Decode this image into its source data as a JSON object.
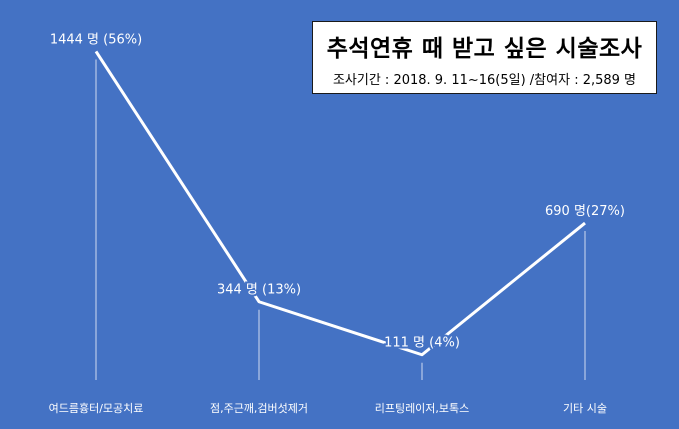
{
  "title_box": {
    "title": "추석연휴 때 받고 싶은 시술조사",
    "subtitle": "조사기간 : 2018. 9. 11~16(5일) /참여자 : 2,589 명"
  },
  "chart_data": {
    "type": "line",
    "title": "추석연휴 때 받고 싶은 시술조사",
    "subtitle": "조사기간 : 2018. 9. 11~16(5일) /참여자 : 2,589 명",
    "categories": [
      "여드름흉터/모공치료",
      "점,주근깨,검버섯제거",
      "리프팅레이저,보톡스",
      "기타 시술"
    ],
    "values": [
      1444,
      344,
      111,
      690
    ],
    "data_labels": [
      "1444 명 (56%)",
      "344 명 (13%)",
      "111 명 (4%)",
      "690 명(27%)"
    ],
    "ylim": [
      0,
      1600
    ],
    "grid": false,
    "legend": "none",
    "colors": {
      "background": "#4472c4",
      "line": "#ffffff",
      "text": "#ffffff"
    }
  }
}
